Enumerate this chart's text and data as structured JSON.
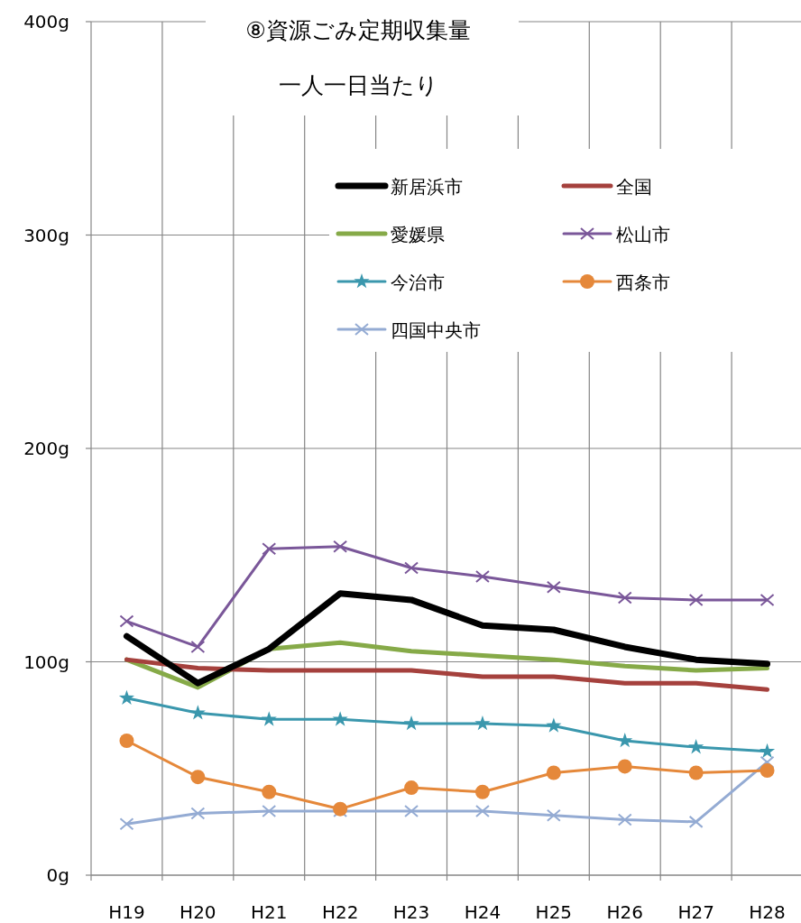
{
  "chart_data": {
    "type": "line",
    "title": "⑧資源ごみ定期収集量",
    "subtitle": "一人一日当たり",
    "categories": [
      "H19",
      "H20",
      "H21",
      "H22",
      "H23",
      "H24",
      "H25",
      "H26",
      "H27",
      "H28"
    ],
    "ylim": [
      0,
      400
    ],
    "yticks": [
      {
        "value": 0,
        "label": "0g"
      },
      {
        "value": 100,
        "label": "100g"
      },
      {
        "value": 200,
        "label": "200g"
      },
      {
        "value": 300,
        "label": "300g"
      },
      {
        "value": 400,
        "label": "400g"
      }
    ],
    "grid": true,
    "legend": "top",
    "series": [
      {
        "name": "新居浜市",
        "color": "#000000",
        "marker": "none",
        "values": [
          112,
          90,
          106,
          132,
          129,
          117,
          115,
          107,
          101,
          99
        ]
      },
      {
        "name": "全国",
        "color": "#a5413d",
        "marker": "none",
        "values": [
          101,
          97,
          96,
          96,
          96,
          93,
          93,
          90,
          90,
          87
        ]
      },
      {
        "name": "愛媛県",
        "color": "#86aa48",
        "marker": "none",
        "values": [
          101,
          88,
          106,
          109,
          105,
          103,
          101,
          98,
          96,
          97
        ]
      },
      {
        "name": "松山市",
        "color": "#7a5799",
        "marker": "cross",
        "values": [
          119,
          107,
          153,
          154,
          144,
          140,
          135,
          130,
          129,
          129
        ]
      },
      {
        "name": "今治市",
        "color": "#3a97ad",
        "marker": "star",
        "values": [
          83,
          76,
          73,
          73,
          71,
          71,
          70,
          63,
          60,
          58
        ]
      },
      {
        "name": "西条市",
        "color": "#e5883a",
        "marker": "circle",
        "values": [
          63,
          46,
          39,
          31,
          41,
          39,
          48,
          51,
          48,
          49
        ]
      },
      {
        "name": "四国中央市",
        "color": "#94abd3",
        "marker": "cross",
        "values": [
          24,
          29,
          30,
          30,
          30,
          30,
          28,
          26,
          25,
          53
        ]
      }
    ]
  }
}
